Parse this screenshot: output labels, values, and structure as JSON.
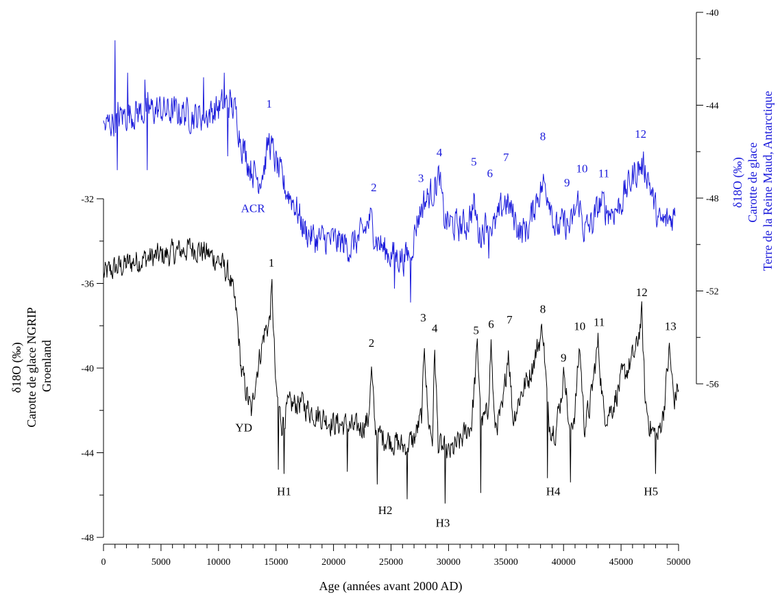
{
  "colors": {
    "ngrip": "#000000",
    "antarctic": "#1a1adb",
    "axis": "#000000"
  },
  "chart_data": {
    "type": "line",
    "xlabel": "Age (années avant 2000 AD)",
    "xlim": [
      0,
      50000
    ],
    "x_ticks": [
      "0",
      "5000",
      "10000",
      "15000",
      "20000",
      "25000",
      "30000",
      "35000",
      "40000",
      "45000",
      "50000"
    ],
    "y_left": {
      "label_lines": [
        "δ18O (‰)",
        "Carotte de glace NGRIP",
        "Groenland"
      ],
      "ylim": [
        -48,
        -32
      ],
      "ticks": [
        "-32",
        "-36",
        "-40",
        "-44",
        "-48"
      ]
    },
    "y_right": {
      "label_lines": [
        "δ18O (‰)",
        "Carotte de glace",
        "Terre de la Reine Maud, Antarctique"
      ],
      "ylim": [
        -56,
        -40
      ],
      "ticks": [
        "-40",
        "-44",
        "-48",
        "-52",
        "-56"
      ]
    },
    "series": [
      {
        "key": "ngrip",
        "color": "#000000",
        "keypoints": [
          [
            0,
            -35.6
          ],
          [
            1000,
            -35.3
          ],
          [
            2000,
            -35.1
          ],
          [
            3000,
            -34.9
          ],
          [
            4000,
            -34.8
          ],
          [
            5000,
            -34.7
          ],
          [
            6000,
            -34.6
          ],
          [
            7000,
            -34.4
          ],
          [
            8000,
            -34.3
          ],
          [
            9000,
            -34.6
          ],
          [
            10000,
            -34.9
          ],
          [
            11000,
            -35.7
          ],
          [
            11600,
            -37.6
          ],
          [
            12000,
            -40.2
          ],
          [
            12500,
            -41.3
          ],
          [
            12900,
            -42.2
          ],
          [
            13200,
            -40.5
          ],
          [
            13600,
            -39.4
          ],
          [
            14000,
            -38.3
          ],
          [
            14400,
            -37.9
          ],
          [
            14650,
            -36.3
          ],
          [
            14800,
            -38.4
          ],
          [
            15000,
            -41.2
          ],
          [
            15500,
            -42.6
          ],
          [
            16000,
            -41.9
          ],
          [
            17000,
            -41.6
          ],
          [
            18000,
            -42.0
          ],
          [
            19000,
            -42.3
          ],
          [
            20000,
            -42.6
          ],
          [
            21000,
            -42.7
          ],
          [
            22000,
            -42.9
          ],
          [
            23000,
            -42.5
          ],
          [
            23300,
            -40.2
          ],
          [
            23600,
            -42.8
          ],
          [
            24000,
            -43.2
          ],
          [
            25000,
            -43.4
          ],
          [
            26000,
            -43.7
          ],
          [
            27000,
            -43.4
          ],
          [
            27700,
            -42.2
          ],
          [
            27900,
            -38.7
          ],
          [
            28200,
            -42.3
          ],
          [
            28600,
            -43.4
          ],
          [
            28800,
            -39.1
          ],
          [
            29100,
            -43.6
          ],
          [
            30000,
            -44.1
          ],
          [
            31000,
            -43.5
          ],
          [
            32000,
            -42.6
          ],
          [
            32500,
            -39.1
          ],
          [
            32900,
            -42.6
          ],
          [
            33400,
            -42.2
          ],
          [
            33700,
            -38.8
          ],
          [
            34000,
            -42.8
          ],
          [
            34700,
            -42.1
          ],
          [
            35200,
            -39.0
          ],
          [
            35600,
            -42.4
          ],
          [
            36300,
            -41.2
          ],
          [
            37000,
            -40.4
          ],
          [
            37700,
            -39.1
          ],
          [
            38200,
            -38.1
          ],
          [
            38700,
            -42.6
          ],
          [
            39300,
            -42.9
          ],
          [
            39800,
            -41.3
          ],
          [
            40100,
            -40.0
          ],
          [
            40500,
            -43.1
          ],
          [
            41000,
            -42.0
          ],
          [
            41400,
            -38.9
          ],
          [
            41800,
            -42.7
          ],
          [
            42300,
            -41.8
          ],
          [
            43000,
            -38.8
          ],
          [
            43500,
            -42.2
          ],
          [
            44200,
            -41.9
          ],
          [
            45000,
            -40.6
          ],
          [
            45700,
            -39.9
          ],
          [
            46300,
            -39.2
          ],
          [
            46800,
            -37.5
          ],
          [
            47100,
            -41.6
          ],
          [
            47600,
            -42.9
          ],
          [
            48200,
            -43.3
          ],
          [
            48700,
            -42.0
          ],
          [
            49200,
            -39.1
          ],
          [
            49600,
            -41.6
          ],
          [
            50000,
            -40.8
          ]
        ],
        "noise_amp": 0.9,
        "min_dips": [
          [
            15700,
            -45.0
          ],
          [
            15200,
            -44.8
          ],
          [
            23800,
            -45.5
          ],
          [
            26400,
            -46.2
          ],
          [
            29700,
            -46.4
          ],
          [
            32800,
            -45.9
          ],
          [
            38600,
            -45.2
          ],
          [
            40600,
            -45.4
          ],
          [
            48000,
            -45.0
          ],
          [
            21200,
            -44.9
          ]
        ]
      },
      {
        "key": "antarctic",
        "color": "#1a1adb",
        "keypoints": [
          [
            0,
            -45.0
          ],
          [
            1000,
            -44.6
          ],
          [
            2000,
            -44.4
          ],
          [
            3000,
            -44.3
          ],
          [
            4000,
            -44.2
          ],
          [
            5000,
            -44.2
          ],
          [
            6000,
            -44.3
          ],
          [
            7000,
            -44.3
          ],
          [
            8000,
            -44.5
          ],
          [
            9000,
            -44.4
          ],
          [
            10000,
            -44.1
          ],
          [
            11000,
            -43.9
          ],
          [
            11500,
            -44.3
          ],
          [
            12000,
            -45.6
          ],
          [
            12700,
            -46.6
          ],
          [
            13500,
            -47.2
          ],
          [
            14000,
            -46.6
          ],
          [
            14400,
            -45.5
          ],
          [
            15000,
            -46.5
          ],
          [
            15800,
            -47.6
          ],
          [
            16500,
            -48.1
          ],
          [
            17500,
            -49.4
          ],
          [
            18500,
            -49.8
          ],
          [
            19500,
            -49.8
          ],
          [
            20500,
            -49.9
          ],
          [
            21500,
            -50.1
          ],
          [
            22500,
            -49.6
          ],
          [
            23200,
            -48.9
          ],
          [
            23700,
            -49.7
          ],
          [
            24500,
            -50.3
          ],
          [
            25500,
            -50.5
          ],
          [
            26200,
            -50.6
          ],
          [
            26700,
            -50.3
          ],
          [
            27300,
            -48.9
          ],
          [
            27800,
            -48.2
          ],
          [
            28500,
            -47.8
          ],
          [
            29200,
            -47.1
          ],
          [
            29600,
            -48.9
          ],
          [
            30500,
            -49.2
          ],
          [
            31500,
            -49.2
          ],
          [
            32200,
            -48.3
          ],
          [
            32700,
            -49.6
          ],
          [
            33400,
            -48.9
          ],
          [
            34000,
            -49.3
          ],
          [
            34900,
            -48.1
          ],
          [
            35500,
            -48.6
          ],
          [
            36300,
            -49.5
          ],
          [
            37000,
            -49.2
          ],
          [
            37700,
            -47.9
          ],
          [
            38300,
            -47.4
          ],
          [
            38800,
            -47.9
          ],
          [
            39300,
            -49.4
          ],
          [
            40000,
            -49.1
          ],
          [
            40600,
            -49.3
          ],
          [
            41300,
            -48.1
          ],
          [
            41800,
            -49.4
          ],
          [
            42500,
            -49.1
          ],
          [
            43200,
            -48.2
          ],
          [
            44000,
            -48.6
          ],
          [
            44800,
            -48.4
          ],
          [
            45500,
            -47.6
          ],
          [
            46200,
            -46.9
          ],
          [
            46800,
            -46.6
          ],
          [
            47300,
            -46.9
          ],
          [
            47800,
            -48.1
          ],
          [
            48300,
            -49.1
          ],
          [
            49000,
            -49.0
          ],
          [
            49700,
            -48.7
          ]
        ],
        "noise_amp": 1.0,
        "max_peaks": [
          [
            1000,
            -41.2
          ],
          [
            2100,
            -42.6
          ],
          [
            3600,
            -42.9
          ],
          [
            8700,
            -42.8
          ],
          [
            10500,
            -42.6
          ]
        ],
        "min_dips": [
          [
            1200,
            -46.8
          ],
          [
            3800,
            -46.8
          ],
          [
            10800,
            -46.2
          ],
          [
            26700,
            -52.5
          ],
          [
            25300,
            -51.9
          ],
          [
            33500,
            -50.6
          ]
        ]
      }
    ],
    "annotations": [
      {
        "series": "ngrip",
        "text": "1",
        "x": 14600,
        "y": -35.2
      },
      {
        "series": "ngrip",
        "text": "2",
        "x": 23300,
        "y": -39.0
      },
      {
        "series": "ngrip",
        "text": "3",
        "x": 27800,
        "y": -37.8
      },
      {
        "series": "ngrip",
        "text": "4",
        "x": 28800,
        "y": -38.3
      },
      {
        "series": "ngrip",
        "text": "5",
        "x": 32400,
        "y": -38.4
      },
      {
        "series": "ngrip",
        "text": "6",
        "x": 33700,
        "y": -38.1
      },
      {
        "series": "ngrip",
        "text": "7",
        "x": 35300,
        "y": -37.9
      },
      {
        "series": "ngrip",
        "text": "8",
        "x": 38200,
        "y": -37.4
      },
      {
        "series": "ngrip",
        "text": "9",
        "x": 40000,
        "y": -39.7
      },
      {
        "series": "ngrip",
        "text": "10",
        "x": 41400,
        "y": -38.2
      },
      {
        "series": "ngrip",
        "text": "11",
        "x": 43100,
        "y": -38.0
      },
      {
        "series": "ngrip",
        "text": "12",
        "x": 46800,
        "y": -36.6
      },
      {
        "series": "ngrip",
        "text": "13",
        "x": 49300,
        "y": -38.2
      },
      {
        "series": "ngrip",
        "text": "YD",
        "x": 12200,
        "y": -43.0
      },
      {
        "series": "ngrip",
        "text": "H1",
        "x": 15700,
        "y": -46.0
      },
      {
        "series": "ngrip",
        "text": "H2",
        "x": 24500,
        "y": -46.9
      },
      {
        "series": "ngrip",
        "text": "H3",
        "x": 29500,
        "y": -47.5
      },
      {
        "series": "ngrip",
        "text": "H4",
        "x": 39100,
        "y": -46.0
      },
      {
        "series": "ngrip",
        "text": "H5",
        "x": 47600,
        "y": -46.0
      },
      {
        "series": "antarctic",
        "text": "1",
        "x": 14400,
        "y": -44.1
      },
      {
        "series": "antarctic",
        "text": "ACR",
        "x": 13000,
        "y": -48.6
      },
      {
        "series": "antarctic",
        "text": "2",
        "x": 23500,
        "y": -47.7
      },
      {
        "series": "antarctic",
        "text": "3",
        "x": 27600,
        "y": -47.3
      },
      {
        "series": "antarctic",
        "text": "4",
        "x": 29200,
        "y": -46.2
      },
      {
        "series": "antarctic",
        "text": "5",
        "x": 32200,
        "y": -46.6
      },
      {
        "series": "antarctic",
        "text": "6",
        "x": 33600,
        "y": -47.1
      },
      {
        "series": "antarctic",
        "text": "7",
        "x": 35000,
        "y": -46.4
      },
      {
        "series": "antarctic",
        "text": "8",
        "x": 38200,
        "y": -45.5
      },
      {
        "series": "antarctic",
        "text": "9",
        "x": 40300,
        "y": -47.5
      },
      {
        "series": "antarctic",
        "text": "10",
        "x": 41600,
        "y": -46.9
      },
      {
        "series": "antarctic",
        "text": "11",
        "x": 43500,
        "y": -47.1
      },
      {
        "series": "antarctic",
        "text": "12",
        "x": 46700,
        "y": -45.4
      }
    ]
  }
}
